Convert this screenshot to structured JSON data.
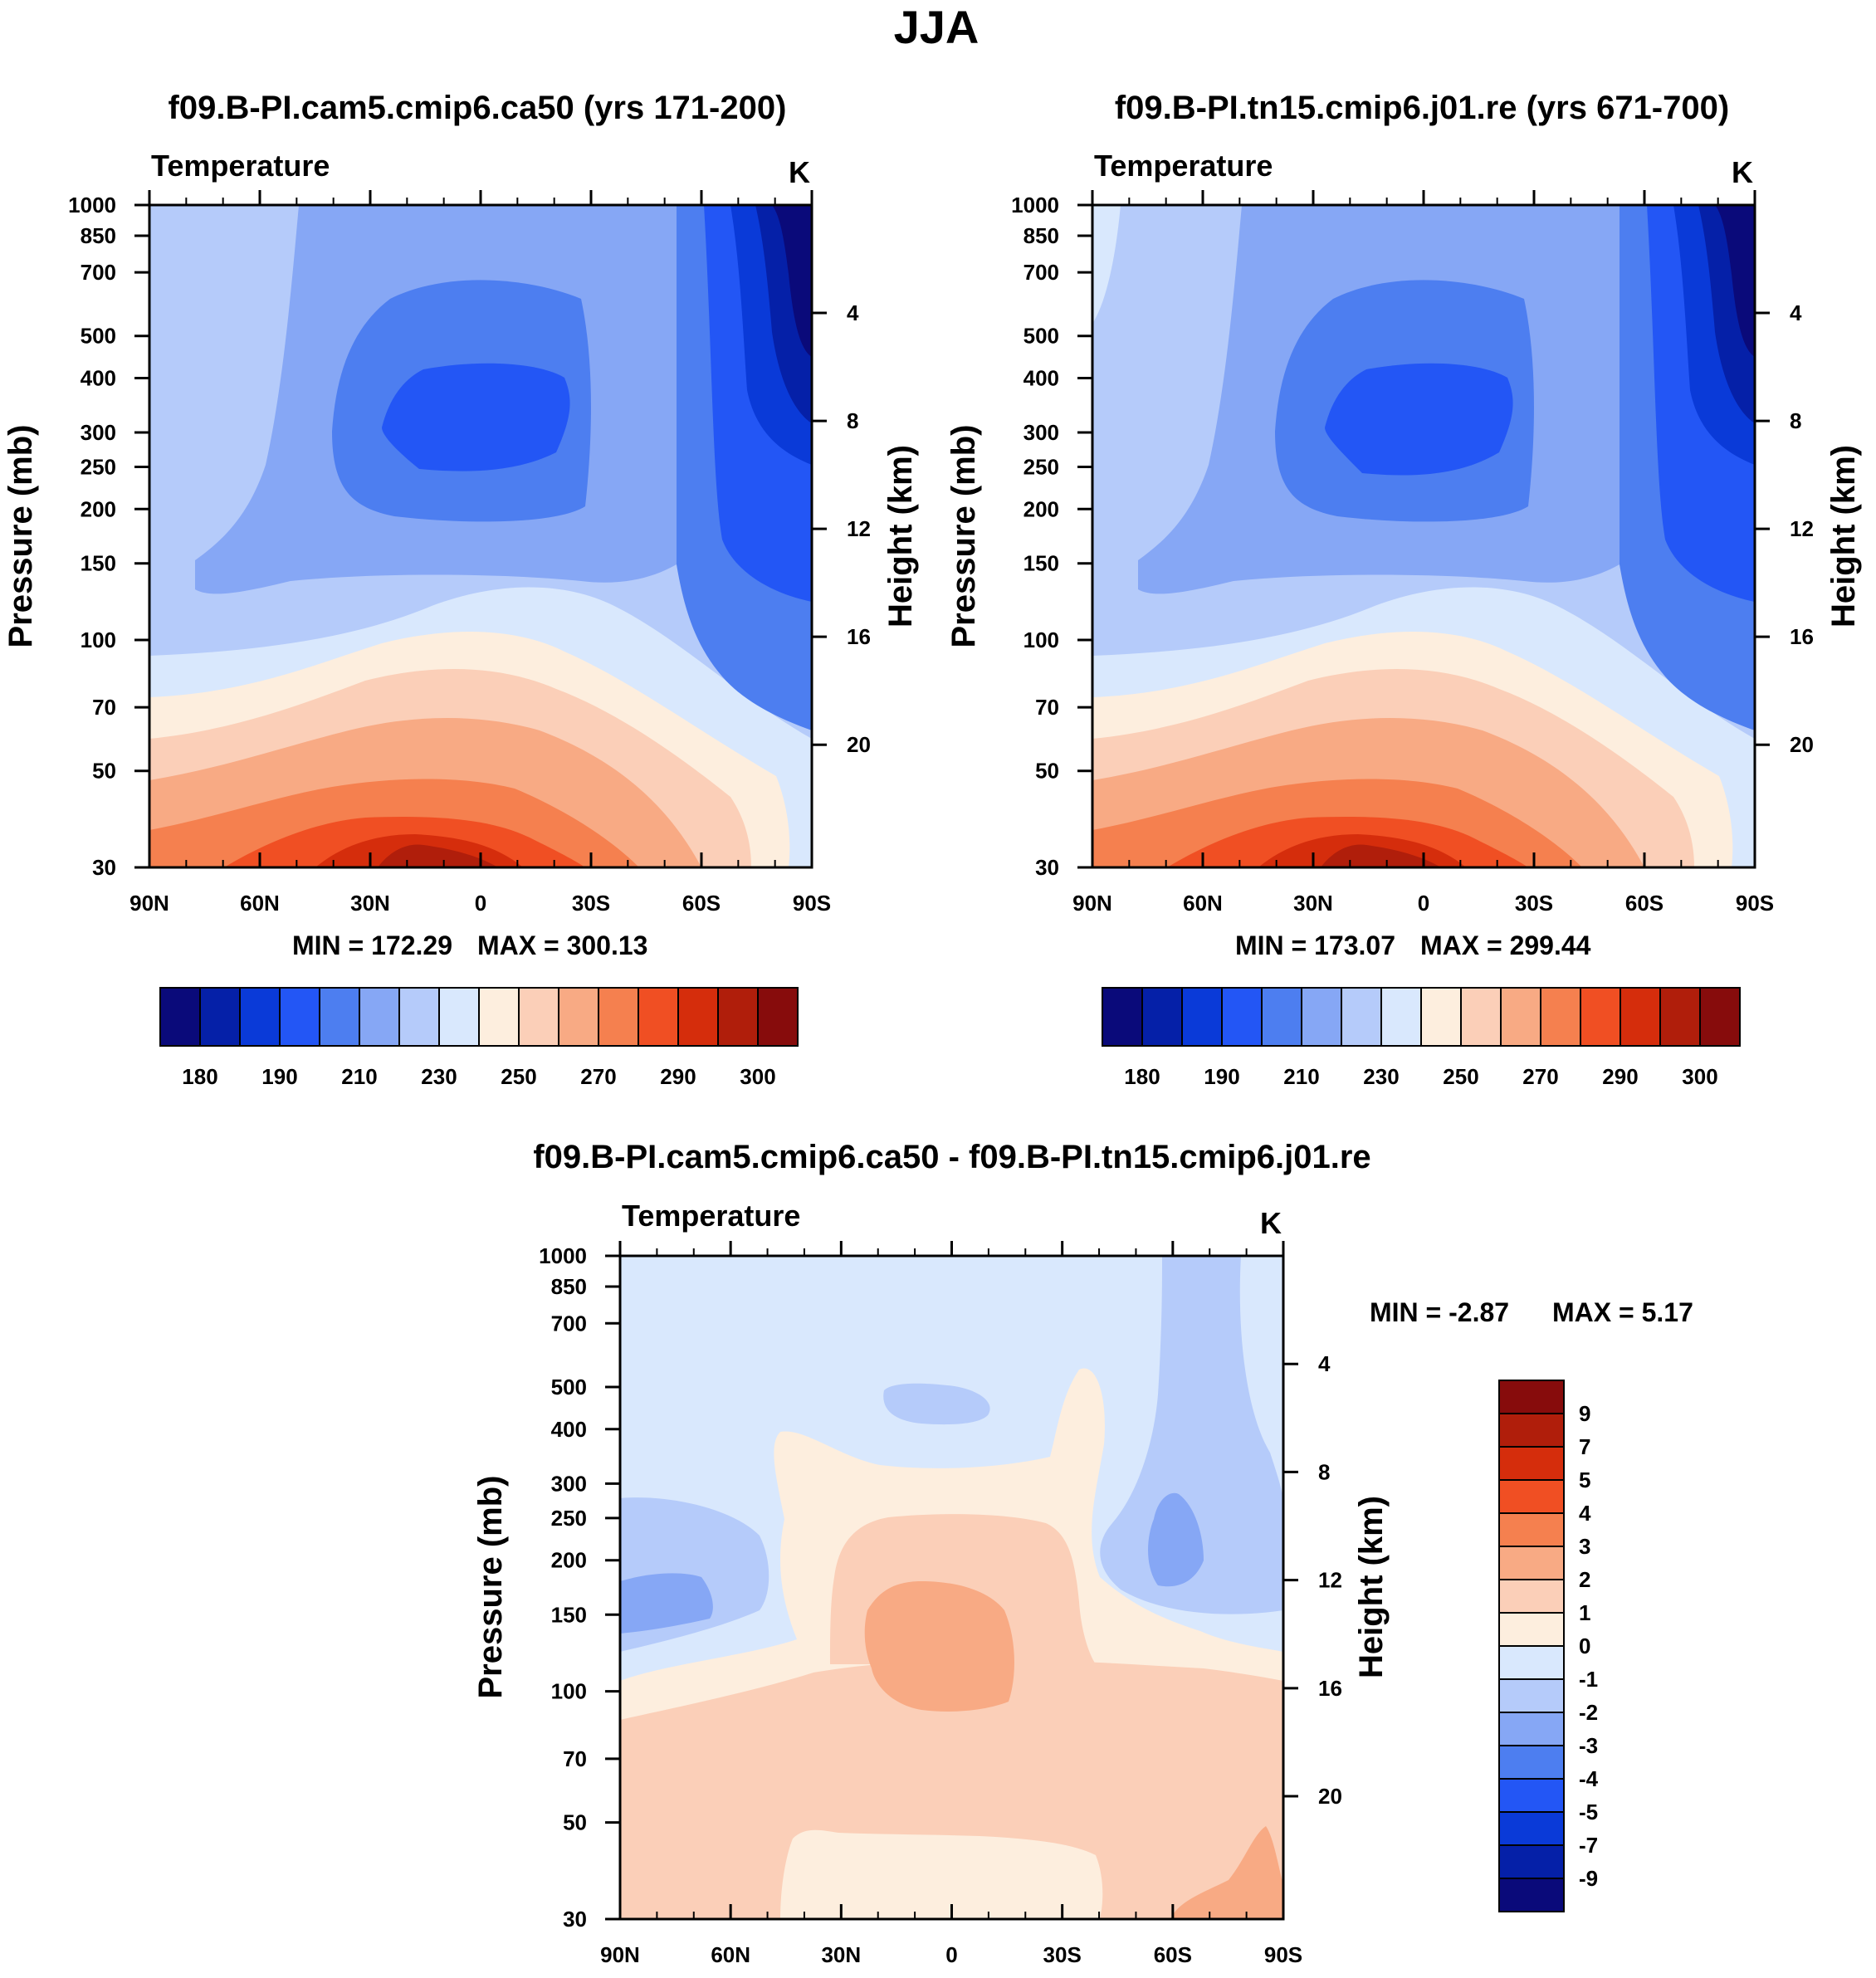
{
  "page_title": "JJA",
  "colors": {
    "temp_scale": [
      "#0a0a7a",
      "#0520a8",
      "#0a3ad8",
      "#2356f5",
      "#4d7ef0",
      "#86a7f5",
      "#b5cbfa",
      "#d9e8fd",
      "#fdeede",
      "#fbcfb8",
      "#f8aa84",
      "#f5804f",
      "#f04f23",
      "#d52d0c",
      "#b01e0b",
      "#870c0c"
    ],
    "diff_scale": [
      "#0a0a7a",
      "#0520a8",
      "#0a3ad8",
      "#2356f5",
      "#4d7ef0",
      "#86a7f5",
      "#b5cbfa",
      "#d9e8fd",
      "#fdeede",
      "#fbcfb8",
      "#f8aa84",
      "#f5804f",
      "#f04f23",
      "#d52d0c",
      "#b01e0b",
      "#870c0c"
    ]
  },
  "chart_data": [
    {
      "id": "panel1",
      "type": "contour",
      "title": "f09.B-PI.cam5.cmip6.ca50 (yrs 171-200)",
      "variable_label": "Temperature",
      "units_label": "K",
      "ylabel": "Pressure (mb)",
      "y2label": "Height (km)",
      "x_ticks": [
        "90N",
        "60N",
        "30N",
        "0",
        "30S",
        "60S",
        "90S"
      ],
      "x_values": [
        90,
        60,
        30,
        0,
        -30,
        -60,
        -90
      ],
      "y_ticks": [
        "30",
        "50",
        "70",
        "100",
        "150",
        "200",
        "250",
        "300",
        "400",
        "500",
        "700",
        "850",
        "1000"
      ],
      "y_values": [
        30,
        50,
        70,
        100,
        150,
        200,
        250,
        300,
        400,
        500,
        700,
        850,
        1000
      ],
      "y2_ticks": [
        "4",
        "8",
        "12",
        "16",
        "20"
      ],
      "y2_values": [
        4,
        8,
        12,
        16,
        20
      ],
      "ylim": [
        1000,
        30
      ],
      "xlim": [
        90,
        -90
      ],
      "min_label": "MIN = 172.29",
      "max_label": "MAX = 300.13",
      "min": 172.29,
      "max": 300.13,
      "colorbar_labels": [
        "180",
        "190",
        "210",
        "230",
        "250",
        "270",
        "290",
        "300"
      ]
    },
    {
      "id": "panel2",
      "type": "contour",
      "title": "f09.B-PI.tn15.cmip6.j01.re (yrs 671-700)",
      "variable_label": "Temperature",
      "units_label": "K",
      "ylabel": "Pressure (mb)",
      "y2label": "Height (km)",
      "x_ticks": [
        "90N",
        "60N",
        "30N",
        "0",
        "30S",
        "60S",
        "90S"
      ],
      "x_values": [
        90,
        60,
        30,
        0,
        -30,
        -60,
        -90
      ],
      "y_ticks": [
        "30",
        "50",
        "70",
        "100",
        "150",
        "200",
        "250",
        "300",
        "400",
        "500",
        "700",
        "850",
        "1000"
      ],
      "y_values": [
        30,
        50,
        70,
        100,
        150,
        200,
        250,
        300,
        400,
        500,
        700,
        850,
        1000
      ],
      "y2_ticks": [
        "4",
        "8",
        "12",
        "16",
        "20"
      ],
      "y2_values": [
        4,
        8,
        12,
        16,
        20
      ],
      "ylim": [
        1000,
        30
      ],
      "xlim": [
        90,
        -90
      ],
      "min_label": "MIN = 173.07",
      "max_label": "MAX = 299.44",
      "min": 173.07,
      "max": 299.44,
      "colorbar_labels": [
        "180",
        "190",
        "210",
        "230",
        "250",
        "270",
        "290",
        "300"
      ]
    },
    {
      "id": "panel3",
      "type": "contour",
      "title": "f09.B-PI.cam5.cmip6.ca50 - f09.B-PI.tn15.cmip6.j01.re",
      "variable_label": "Temperature",
      "units_label": "K",
      "ylabel": "Pressure (mb)",
      "y2label": "Height (km)",
      "x_ticks": [
        "90N",
        "60N",
        "30N",
        "0",
        "30S",
        "60S",
        "90S"
      ],
      "x_values": [
        90,
        60,
        30,
        0,
        -30,
        -60,
        -90
      ],
      "y_ticks": [
        "30",
        "50",
        "70",
        "100",
        "150",
        "200",
        "250",
        "300",
        "400",
        "500",
        "700",
        "850",
        "1000"
      ],
      "y_values": [
        30,
        50,
        70,
        100,
        150,
        200,
        250,
        300,
        400,
        500,
        700,
        850,
        1000
      ],
      "y2_ticks": [
        "4",
        "8",
        "12",
        "16",
        "20"
      ],
      "y2_values": [
        4,
        8,
        12,
        16,
        20
      ],
      "ylim": [
        1000,
        30
      ],
      "xlim": [
        90,
        -90
      ],
      "min_label": "MIN =  -2.87",
      "max_label": "MAX =   5.17",
      "min": -2.87,
      "max": 5.17,
      "colorbar_labels": [
        "9",
        "7",
        "5",
        "4",
        "3",
        "2",
        "1",
        "0",
        "-1",
        "-2",
        "-3",
        "-4",
        "-5",
        "-7",
        "-9"
      ]
    }
  ]
}
